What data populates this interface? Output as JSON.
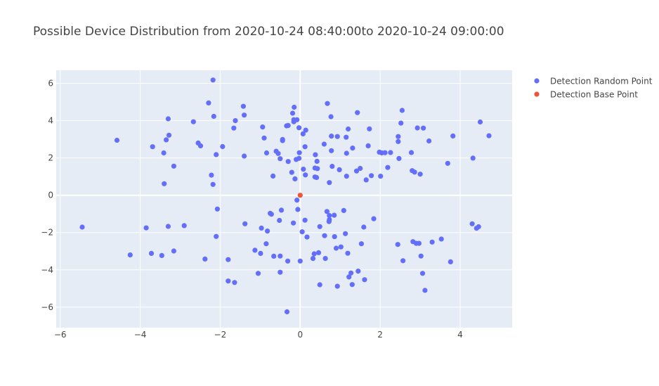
{
  "chart_data": {
    "type": "scatter",
    "title": "Possible Device Distribution from 2020-10-24 08:40:00to 2020-10-24 09:00:00",
    "xlabel": "",
    "ylabel": "",
    "xlim": [
      -6.1,
      5.3
    ],
    "ylim": [
      -7.1,
      6.7
    ],
    "xticks": [
      -6,
      -4,
      -2,
      0,
      2,
      4
    ],
    "yticks": [
      -6,
      -4,
      -2,
      0,
      2,
      4,
      6
    ],
    "xtick_labels": [
      "−6",
      "−4",
      "−2",
      "0",
      "2",
      "4"
    ],
    "ytick_labels": [
      "−6",
      "−4",
      "−2",
      "0",
      "2",
      "4",
      "6"
    ],
    "grid": true,
    "legend_position": "top-right",
    "background_color": "#e5ecf6",
    "series": [
      {
        "name": "Detection Random Point",
        "color": "#636efa",
        "points": [
          [
            -2.18,
            6.18
          ],
          [
            -2.29,
            4.95
          ],
          [
            -1.42,
            4.77
          ],
          [
            -0.15,
            4.72
          ],
          [
            0.68,
            4.92
          ],
          [
            2.55,
            4.55
          ],
          [
            -3.3,
            4.1
          ],
          [
            -2.67,
            3.94
          ],
          [
            -2.16,
            4.23
          ],
          [
            -1.62,
            4.0
          ],
          [
            -1.4,
            4.3
          ],
          [
            -0.19,
            4.4
          ],
          [
            -0.16,
            4.05
          ],
          [
            -0.16,
            3.94
          ],
          [
            -0.08,
            4.05
          ],
          [
            0.77,
            4.21
          ],
          [
            1.43,
            4.43
          ],
          [
            2.52,
            3.87
          ],
          [
            4.5,
            3.93
          ],
          [
            -1.66,
            3.6
          ],
          [
            -0.94,
            3.66
          ],
          [
            -0.34,
            3.72
          ],
          [
            -0.3,
            3.74
          ],
          [
            -0.03,
            3.62
          ],
          [
            0.14,
            3.49
          ],
          [
            1.2,
            3.55
          ],
          [
            1.73,
            3.56
          ],
          [
            2.93,
            3.61
          ],
          [
            3.08,
            3.6
          ],
          [
            -4.58,
            2.95
          ],
          [
            -3.35,
            2.97
          ],
          [
            -3.28,
            3.22
          ],
          [
            -0.9,
            3.07
          ],
          [
            -0.44,
            2.99
          ],
          [
            0.07,
            3.29
          ],
          [
            0.78,
            3.17
          ],
          [
            0.93,
            3.15
          ],
          [
            1.15,
            3.11
          ],
          [
            2.45,
            3.15
          ],
          [
            3.82,
            3.18
          ],
          [
            4.72,
            3.19
          ],
          [
            -3.69,
            2.6
          ],
          [
            -2.55,
            2.8
          ],
          [
            -2.49,
            2.65
          ],
          [
            -1.94,
            2.61
          ],
          [
            -0.44,
            2.93
          ],
          [
            0.6,
            2.74
          ],
          [
            1.31,
            2.53
          ],
          [
            1.7,
            2.65
          ],
          [
            2.45,
            2.88
          ],
          [
            3.22,
            2.91
          ],
          [
            -3.41,
            2.27
          ],
          [
            -2.1,
            2.18
          ],
          [
            -1.4,
            2.1
          ],
          [
            -0.84,
            2.27
          ],
          [
            -0.6,
            2.36
          ],
          [
            -0.55,
            2.24
          ],
          [
            -0.02,
            2.28
          ],
          [
            0.12,
            2.6
          ],
          [
            0.38,
            2.17
          ],
          [
            0.78,
            2.39
          ],
          [
            1.16,
            2.25
          ],
          [
            1.98,
            2.31
          ],
          [
            2.04,
            2.27
          ],
          [
            2.12,
            2.28
          ],
          [
            2.26,
            2.29
          ],
          [
            2.78,
            2.29
          ],
          [
            4.32,
            1.99
          ],
          [
            -3.16,
            1.56
          ],
          [
            -0.5,
            1.96
          ],
          [
            -0.3,
            1.81
          ],
          [
            -0.1,
            1.92
          ],
          [
            -0.03,
            1.98
          ],
          [
            0.42,
            1.82
          ],
          [
            0.8,
            1.55
          ],
          [
            0.98,
            1.37
          ],
          [
            1.41,
            1.3
          ],
          [
            1.5,
            1.44
          ],
          [
            2.19,
            1.49
          ],
          [
            2.47,
            1.97
          ],
          [
            3.69,
            1.71
          ],
          [
            -2.22,
            1.08
          ],
          [
            -0.68,
            1.03
          ],
          [
            -0.21,
            1.23
          ],
          [
            0.08,
            1.4
          ],
          [
            0.13,
            1.09
          ],
          [
            0.37,
            1.46
          ],
          [
            0.43,
            1.43
          ],
          [
            1.16,
            1.02
          ],
          [
            1.65,
            0.82
          ],
          [
            1.78,
            1.05
          ],
          [
            2.01,
            1.02
          ],
          [
            2.8,
            1.32
          ],
          [
            2.86,
            1.24
          ],
          [
            3.0,
            1.13
          ],
          [
            -3.4,
            0.62
          ],
          [
            -2.18,
            0.58
          ],
          [
            -0.13,
            0.88
          ],
          [
            0.37,
            0.98
          ],
          [
            0.41,
            0.95
          ],
          [
            0.73,
            0.68
          ],
          [
            -0.08,
            -0.26
          ],
          [
            -5.45,
            -1.71
          ],
          [
            -2.07,
            -0.74
          ],
          [
            -0.75,
            -0.97
          ],
          [
            -0.72,
            -1.02
          ],
          [
            -0.47,
            -0.8
          ],
          [
            -0.06,
            -0.76
          ],
          [
            0.67,
            -0.87
          ],
          [
            1.09,
            -0.82
          ],
          [
            -3.85,
            -1.75
          ],
          [
            -3.3,
            -1.67
          ],
          [
            -2.9,
            -1.63
          ],
          [
            -2.1,
            -2.21
          ],
          [
            -1.38,
            -1.53
          ],
          [
            -0.97,
            -1.76
          ],
          [
            -0.82,
            -1.92
          ],
          [
            -0.52,
            -1.35
          ],
          [
            -0.17,
            -1.49
          ],
          [
            0.12,
            -1.34
          ],
          [
            0.73,
            -1.09
          ],
          [
            0.73,
            -1.31
          ],
          [
            0.72,
            -1.41
          ],
          [
            0.85,
            -1.07
          ],
          [
            1.84,
            -1.26
          ],
          [
            4.3,
            -1.53
          ],
          [
            4.41,
            -1.77
          ],
          [
            4.46,
            -1.69
          ],
          [
            -4.25,
            -3.2
          ],
          [
            -3.72,
            -3.12
          ],
          [
            -3.46,
            -3.23
          ],
          [
            -3.16,
            -2.99
          ],
          [
            -2.38,
            -3.42
          ],
          [
            -1.13,
            -2.95
          ],
          [
            -0.85,
            -2.6
          ],
          [
            -0.99,
            -3.12
          ],
          [
            -0.66,
            -3.27
          ],
          [
            -0.5,
            -3.26
          ],
          [
            0.05,
            -1.96
          ],
          [
            0.17,
            -2.24
          ],
          [
            0.49,
            -1.68
          ],
          [
            0.61,
            -2.17
          ],
          [
            0.86,
            -2.22
          ],
          [
            1.13,
            -2.06
          ],
          [
            1.59,
            -1.71
          ],
          [
            -0.31,
            -3.53
          ],
          [
            0.0,
            -3.53
          ],
          [
            0.32,
            -3.39
          ],
          [
            0.35,
            -3.14
          ],
          [
            0.46,
            -3.08
          ],
          [
            0.63,
            -3.39
          ],
          [
            0.9,
            -2.84
          ],
          [
            1.02,
            -2.77
          ],
          [
            1.19,
            -3.11
          ],
          [
            1.53,
            -2.6
          ],
          [
            2.44,
            -2.64
          ],
          [
            2.82,
            -2.49
          ],
          [
            2.9,
            -2.58
          ],
          [
            2.97,
            -2.58
          ],
          [
            3.02,
            -3.26
          ],
          [
            3.3,
            -2.51
          ],
          [
            3.53,
            -2.35
          ],
          [
            2.57,
            -3.51
          ],
          [
            3.76,
            -3.57
          ],
          [
            -1.8,
            -4.6
          ],
          [
            -1.64,
            -4.68
          ],
          [
            -1.8,
            -3.45
          ],
          [
            -1.05,
            -4.19
          ],
          [
            -0.5,
            -4.13
          ],
          [
            0.49,
            -4.8
          ],
          [
            0.93,
            -4.88
          ],
          [
            1.22,
            -4.38
          ],
          [
            1.27,
            -4.17
          ],
          [
            1.3,
            -4.79
          ],
          [
            1.45,
            -4.07
          ],
          [
            1.61,
            -4.53
          ],
          [
            3.06,
            -4.19
          ],
          [
            3.12,
            -5.1
          ],
          [
            -0.33,
            -6.25
          ]
        ]
      },
      {
        "name": "Detection Base Point",
        "color": "#ef553b",
        "points": [
          [
            0.0,
            0.0
          ]
        ]
      }
    ]
  }
}
